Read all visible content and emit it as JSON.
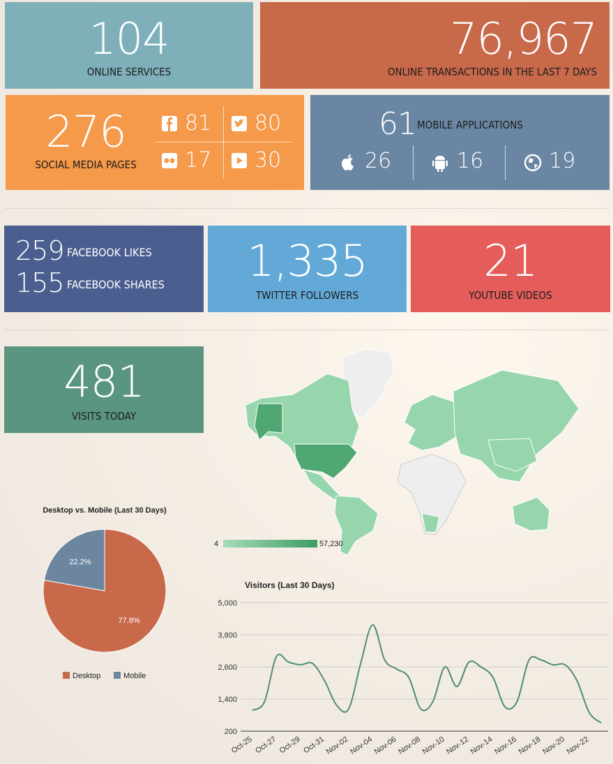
{
  "tiles": {
    "online_services": {
      "value": "104",
      "label": "ONLINE SERVICES"
    },
    "transactions": {
      "value": "76,967",
      "label": "ONLINE TRANSACTIONS IN THE LAST 7 DAYS"
    },
    "social": {
      "value": "276",
      "label": "SOCIAL MEDIA PAGES",
      "facebook": "81",
      "twitter": "80",
      "flickr": "17",
      "youtube": "30"
    },
    "mobile": {
      "value": "61",
      "label": "MOBILE APPLICATIONS",
      "ios": "26",
      "android": "16",
      "web": "19"
    },
    "facebook": {
      "likes": "259",
      "likes_label": "FACEBOOK LIKES",
      "shares": "155",
      "shares_label": "FACEBOOK SHARES"
    },
    "twitter": {
      "value": "1,335",
      "label": "TWITTER FOLLOWERS"
    },
    "youtube": {
      "value": "21",
      "label": "YOUTUBE VIDEOS"
    },
    "visits": {
      "value": "481",
      "label": "VISITS TODAY"
    }
  },
  "map": {
    "legend_min": "4",
    "legend_max": "57,230"
  },
  "chart_data": [
    {
      "type": "line",
      "title": "Visitors (Last 30 Days)",
      "categories": [
        "Oct-25",
        null,
        "Oct-27",
        null,
        "Oct-29",
        null,
        "Oct-31",
        null,
        "Nov-02",
        null,
        "Nov-04",
        null,
        "Nov-06",
        null,
        "Nov-08",
        null,
        "Nov-10",
        null,
        "Nov-12",
        null,
        "Nov-14",
        null,
        "Nov-16",
        null,
        "Nov-18",
        null,
        "Nov-20",
        null,
        "Nov-22",
        null
      ],
      "values": [
        980,
        1300,
        2990,
        2780,
        2680,
        2730,
        2080,
        1170,
        1030,
        2730,
        4170,
        2860,
        2520,
        2210,
        1030,
        1300,
        2600,
        1870,
        2780,
        2600,
        2210,
        1110,
        1300,
        2860,
        2860,
        2680,
        2680,
        2080,
        900,
        510
      ],
      "color": "#4f8c72",
      "ylim": [
        200,
        5000
      ],
      "yticks": [
        200,
        {
          "value": 1400,
          "label": "1,400"
        },
        {
          "value": 2600,
          "label": "2,600"
        },
        {
          "value": 3800,
          "label": "3,800"
        },
        {
          "value": 5000,
          "label": "5,000"
        }
      ],
      "grid": true
    },
    {
      "type": "pie",
      "title": "Desktop vs. Mobile (Last 30 Days)",
      "categories": [
        "Desktop",
        "Mobile"
      ],
      "values": [
        77.8,
        22.2
      ],
      "value_labels": [
        "77.8%",
        "22.2%"
      ],
      "colors": [
        "#c8694a",
        "#6c86a0"
      ],
      "legend": "bottom"
    }
  ]
}
